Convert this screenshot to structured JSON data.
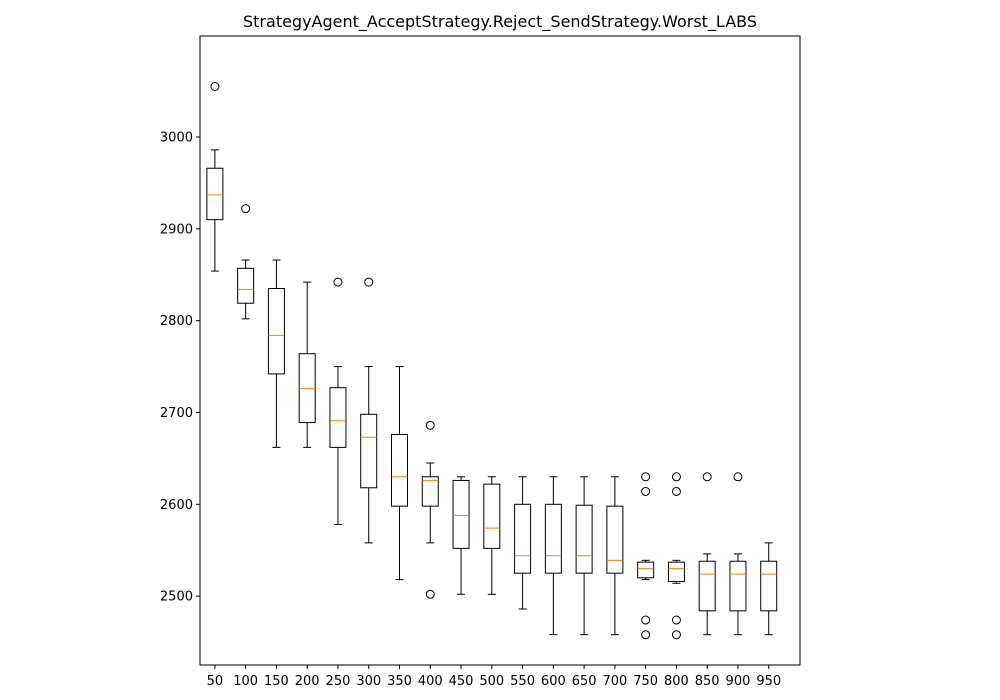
{
  "chart_data": {
    "type": "boxplot",
    "title": "StrategyAgent_AcceptStrategy.Reject_SendStrategy.Worst_LABS",
    "xlabel": "",
    "ylabel": "",
    "ylim": [
      2425,
      3110
    ],
    "yticks": [
      2500,
      2600,
      2700,
      2800,
      2900,
      3000
    ],
    "grid": false,
    "colors": {
      "box": "#000000",
      "median": "#ff7f0e",
      "background": "#ffffff"
    },
    "categories": [
      "50",
      "100",
      "150",
      "200",
      "250",
      "300",
      "350",
      "400",
      "450",
      "500",
      "550",
      "600",
      "650",
      "700",
      "750",
      "800",
      "850",
      "900",
      "950"
    ],
    "boxes": [
      {
        "whislo": 2854,
        "q1": 2910,
        "med": 2937,
        "q3": 2966,
        "whishi": 2986,
        "fliers": [
          3055
        ]
      },
      {
        "whislo": 2802,
        "q1": 2819,
        "med": 2834,
        "q3": 2857,
        "whishi": 2866,
        "fliers": [
          2922
        ]
      },
      {
        "whislo": 2662,
        "q1": 2742,
        "med": 2784,
        "q3": 2835,
        "whishi": 2866,
        "fliers": []
      },
      {
        "whislo": 2662,
        "q1": 2689,
        "med": 2726,
        "q3": 2764,
        "whishi": 2842,
        "fliers": []
      },
      {
        "whislo": 2578,
        "q1": 2662,
        "med": 2691,
        "q3": 2727,
        "whishi": 2750,
        "fliers": [
          2842
        ]
      },
      {
        "whislo": 2558,
        "q1": 2618,
        "med": 2673,
        "q3": 2698,
        "whishi": 2750,
        "fliers": [
          2842
        ]
      },
      {
        "whislo": 2518,
        "q1": 2598,
        "med": 2630,
        "q3": 2676,
        "whishi": 2750,
        "fliers": []
      },
      {
        "whislo": 2558,
        "q1": 2598,
        "med": 2626,
        "q3": 2630,
        "whishi": 2645,
        "fliers": [
          2686,
          2502
        ]
      },
      {
        "whislo": 2502,
        "q1": 2552,
        "med": 2588,
        "q3": 2626,
        "whishi": 2630,
        "fliers": []
      },
      {
        "whislo": 2502,
        "q1": 2552,
        "med": 2574,
        "q3": 2622,
        "whishi": 2630,
        "fliers": []
      },
      {
        "whislo": 2486,
        "q1": 2525,
        "med": 2544,
        "q3": 2600,
        "whishi": 2630,
        "fliers": []
      },
      {
        "whislo": 2458,
        "q1": 2525,
        "med": 2544,
        "q3": 2600,
        "whishi": 2630,
        "fliers": []
      },
      {
        "whislo": 2458,
        "q1": 2525,
        "med": 2544,
        "q3": 2599,
        "whishi": 2630,
        "fliers": []
      },
      {
        "whislo": 2458,
        "q1": 2525,
        "med": 2539,
        "q3": 2598,
        "whishi": 2630,
        "fliers": []
      },
      {
        "whislo": 2518,
        "q1": 2520,
        "med": 2530,
        "q3": 2537,
        "whishi": 2539,
        "fliers": [
          2630,
          2614,
          2474,
          2458
        ]
      },
      {
        "whislo": 2514,
        "q1": 2516,
        "med": 2530,
        "q3": 2537,
        "whishi": 2539,
        "fliers": [
          2630,
          2614,
          2474,
          2458
        ]
      },
      {
        "whislo": 2458,
        "q1": 2484,
        "med": 2524,
        "q3": 2538,
        "whishi": 2546,
        "fliers": [
          2630
        ]
      },
      {
        "whislo": 2458,
        "q1": 2484,
        "med": 2524,
        "q3": 2538,
        "whishi": 2546,
        "fliers": [
          2630
        ]
      },
      {
        "whislo": 2458,
        "q1": 2484,
        "med": 2524,
        "q3": 2538,
        "whishi": 2558,
        "fliers": []
      }
    ]
  }
}
